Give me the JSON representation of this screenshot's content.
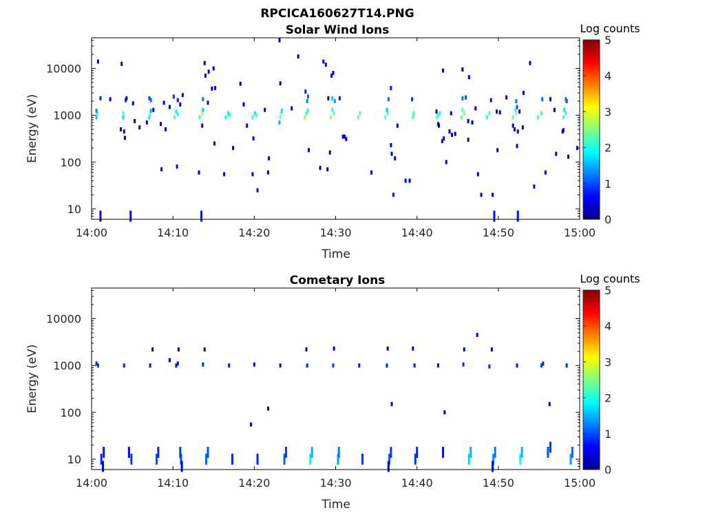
{
  "figure": {
    "title": "RPCICA160627T14.PNG"
  },
  "chart_data": [
    {
      "type": "heatmap",
      "title": "Solar Wind Ions",
      "xlabel": "Time",
      "ylabel": "Energy (eV)",
      "y_scale": "log",
      "xlim": [
        "14:00",
        "15:00"
      ],
      "ylim": [
        6,
        45000
      ],
      "x_ticks": [
        "14:00",
        "14:10",
        "14:20",
        "14:30",
        "14:40",
        "14:50",
        "15:00"
      ],
      "y_ticks": [
        "10",
        "100",
        "1000",
        "10000"
      ],
      "y_tick_values": [
        10,
        100,
        1000,
        10000
      ],
      "colorbar": {
        "label": "Log counts",
        "range": [
          0,
          5
        ],
        "ticks": [
          "0",
          "1",
          "2",
          "3",
          "4",
          "5"
        ],
        "colormap": "jet"
      },
      "points": [
        [
          0.6,
          900,
          1.6
        ],
        [
          0.7,
          1100,
          2.0
        ],
        [
          0.6,
          1250,
          1.3
        ],
        [
          1.1,
          2300,
          0.8
        ],
        [
          0.8,
          14000,
          0.4
        ],
        [
          3.9,
          900,
          1.7
        ],
        [
          3.9,
          1100,
          2.2
        ],
        [
          4.2,
          2100,
          0.8
        ],
        [
          4.3,
          2300,
          0.6
        ],
        [
          3.7,
          12500,
          0.4
        ],
        [
          4.0,
          450,
          0.5
        ],
        [
          4.1,
          330,
          0.4
        ],
        [
          3.6,
          500,
          0.4
        ],
        [
          2.3,
          2200,
          0.5
        ],
        [
          5.1,
          1800,
          0.4
        ],
        [
          5.3,
          750,
          0.4
        ],
        [
          5.9,
          550,
          0.4
        ],
        [
          7.1,
          900,
          1.8
        ],
        [
          7.2,
          1100,
          2.4
        ],
        [
          7.3,
          1250,
          1.5
        ],
        [
          7.3,
          2100,
          1.2
        ],
        [
          7.1,
          2300,
          1.0
        ],
        [
          6.8,
          700,
          0.4
        ],
        [
          7.6,
          1300,
          0.4
        ],
        [
          10.2,
          900,
          2.4
        ],
        [
          10.6,
          1050,
          2.1
        ],
        [
          10.4,
          1200,
          1.9
        ],
        [
          10.1,
          2500,
          0.9
        ],
        [
          10.6,
          2100,
          0.7
        ],
        [
          10.9,
          1700,
          0.6
        ],
        [
          11.2,
          2700,
          0.5
        ],
        [
          10.5,
          80,
          0.6
        ],
        [
          8.5,
          650,
          0.4
        ],
        [
          9.1,
          500,
          0.4
        ],
        [
          9.6,
          1500,
          0.5
        ],
        [
          8.9,
          1850,
          0.4
        ],
        [
          8.6,
          70,
          0.3
        ],
        [
          13.3,
          900,
          2.2
        ],
        [
          13.6,
          1100,
          2.7
        ],
        [
          13.7,
          1300,
          1.6
        ],
        [
          13.7,
          2200,
          1.2
        ],
        [
          14.0,
          7000,
          0.6
        ],
        [
          14.4,
          8500,
          0.6
        ],
        [
          14.8,
          3700,
          0.4
        ],
        [
          15.0,
          10000,
          0.4
        ],
        [
          14.3,
          1850,
          0.4
        ],
        [
          13.6,
          600,
          0.4
        ],
        [
          13.2,
          60,
          0.3
        ],
        [
          13.9,
          13000,
          0.4
        ],
        [
          15.2,
          3800,
          0.4
        ],
        [
          15.1,
          250,
          0.3
        ],
        [
          16.5,
          900,
          1.9
        ],
        [
          16.8,
          1100,
          1.8
        ],
        [
          17.0,
          1000,
          2.2
        ],
        [
          17.4,
          200,
          0.4
        ],
        [
          16.3,
          55,
          0.6
        ],
        [
          18.3,
          4700,
          0.4
        ],
        [
          18.7,
          1700,
          0.4
        ],
        [
          19.1,
          600,
          0.5
        ],
        [
          19.8,
          900,
          2.1
        ],
        [
          20.1,
          1100,
          1.8
        ],
        [
          20.3,
          1000,
          2.3
        ],
        [
          19.9,
          320,
          0.4
        ],
        [
          19.8,
          55,
          0.5
        ],
        [
          20.4,
          25,
          0.6
        ],
        [
          21.3,
          1300,
          0.5
        ],
        [
          21.8,
          120,
          0.4
        ],
        [
          21.7,
          60,
          0.5
        ],
        [
          23.2,
          900,
          2.4
        ],
        [
          23.3,
          1150,
          2.5
        ],
        [
          23.1,
          700,
          1.5
        ],
        [
          23.4,
          1250,
          1.8
        ],
        [
          23.2,
          4800,
          0.5
        ],
        [
          23.1,
          40000,
          0.4
        ],
        [
          24.6,
          1400,
          0.4
        ],
        [
          25.4,
          18000,
          0.4
        ],
        [
          26.2,
          900,
          2.7
        ],
        [
          26.4,
          1100,
          2.2
        ],
        [
          26.6,
          1250,
          2.0
        ],
        [
          26.5,
          2000,
          1.3
        ],
        [
          26.6,
          2500,
          1.1
        ],
        [
          26.3,
          3200,
          0.8
        ],
        [
          26.7,
          180,
          0.5
        ],
        [
          28.1,
          75,
          0.4
        ],
        [
          28.5,
          14000,
          0.6
        ],
        [
          28.8,
          12000,
          0.5
        ],
        [
          29.1,
          2300,
          0.5
        ],
        [
          29.4,
          900,
          2.6
        ],
        [
          29.8,
          1100,
          2.4
        ],
        [
          29.6,
          1300,
          2.0
        ],
        [
          29.6,
          2300,
          1.6
        ],
        [
          29.9,
          2000,
          1.4
        ],
        [
          30.5,
          2300,
          0.8
        ],
        [
          29.5,
          7000,
          0.5
        ],
        [
          29.7,
          8000,
          0.5
        ],
        [
          29.3,
          160,
          0.4
        ],
        [
          29.0,
          70,
          0.3
        ],
        [
          30.9,
          350,
          0.4
        ],
        [
          31.1,
          350,
          0.4
        ],
        [
          31.3,
          310,
          0.4
        ],
        [
          32.8,
          900,
          2.5
        ],
        [
          33.0,
          1100,
          2.2
        ],
        [
          34.4,
          60,
          0.4
        ],
        [
          36.1,
          900,
          2.3
        ],
        [
          36.4,
          1100,
          2.2
        ],
        [
          36.3,
          1300,
          1.6
        ],
        [
          36.5,
          2200,
          1.1
        ],
        [
          36.8,
          3800,
          0.6
        ],
        [
          36.8,
          230,
          0.5
        ],
        [
          36.9,
          150,
          0.4
        ],
        [
          37.3,
          120,
          0.5
        ],
        [
          37.1,
          20,
          0.6
        ],
        [
          37.6,
          600,
          0.4
        ],
        [
          38.6,
          40,
          0.5
        ],
        [
          39.1,
          40,
          0.5
        ],
        [
          39.5,
          900,
          2.3
        ],
        [
          39.6,
          1100,
          2.0
        ],
        [
          39.4,
          2200,
          0.8
        ],
        [
          42.5,
          900,
          2.2
        ],
        [
          42.8,
          1100,
          1.9
        ],
        [
          42.6,
          1000,
          2.1
        ],
        [
          42.6,
          650,
          0.5
        ],
        [
          42.7,
          600,
          0.4
        ],
        [
          42.4,
          1200,
          0.5
        ],
        [
          43.1,
          280,
          0.4
        ],
        [
          43.3,
          320,
          0.4
        ],
        [
          43.6,
          100,
          0.4
        ],
        [
          43.2,
          9000,
          0.4
        ],
        [
          44.0,
          450,
          0.4
        ],
        [
          44.3,
          380,
          0.4
        ],
        [
          44.7,
          400,
          0.4
        ],
        [
          44.2,
          1100,
          0.5
        ],
        [
          45.5,
          900,
          2.3
        ],
        [
          45.8,
          1100,
          2.5
        ],
        [
          45.6,
          1300,
          2.2
        ],
        [
          45.6,
          2300,
          1.2
        ],
        [
          46.0,
          2400,
          1.0
        ],
        [
          45.6,
          9500,
          0.4
        ],
        [
          46.4,
          6500,
          0.4
        ],
        [
          46.3,
          750,
          0.5
        ],
        [
          46.8,
          700,
          0.4
        ],
        [
          47.5,
          55,
          0.4
        ],
        [
          46.3,
          300,
          0.4
        ],
        [
          47.2,
          1400,
          0.4
        ],
        [
          47.9,
          20,
          0.6
        ],
        [
          48.6,
          900,
          2.1
        ],
        [
          48.9,
          1100,
          2.2
        ],
        [
          49.1,
          2100,
          0.7
        ],
        [
          49.3,
          20,
          0.6
        ],
        [
          49.8,
          1200,
          0.4
        ],
        [
          49.9,
          180,
          0.4
        ],
        [
          50.2,
          1150,
          0.4
        ],
        [
          51.0,
          2400,
          0.5
        ],
        [
          51.8,
          900,
          2.3
        ],
        [
          52.2,
          1100,
          2.5
        ],
        [
          52.1,
          1300,
          2.1
        ],
        [
          52.2,
          2000,
          1.2
        ],
        [
          52.3,
          1500,
          1.0
        ],
        [
          52.0,
          500,
          0.6
        ],
        [
          52.4,
          450,
          0.5
        ],
        [
          51.8,
          600,
          0.4
        ],
        [
          52.3,
          220,
          0.4
        ],
        [
          52.6,
          1200,
          0.4
        ],
        [
          53.0,
          550,
          0.4
        ],
        [
          53.1,
          3000,
          0.4
        ],
        [
          53.9,
          13000,
          0.4
        ],
        [
          54.4,
          30,
          0.6
        ],
        [
          54.9,
          900,
          2.2
        ],
        [
          55.3,
          1100,
          2.3
        ],
        [
          55.4,
          2200,
          1.2
        ],
        [
          55.8,
          60,
          0.4
        ],
        [
          56.4,
          2200,
          0.4
        ],
        [
          56.9,
          1300,
          0.4
        ],
        [
          57.1,
          150,
          0.4
        ],
        [
          58.0,
          900,
          2.2
        ],
        [
          58.3,
          1100,
          2.1
        ],
        [
          58.1,
          1300,
          1.8
        ],
        [
          58.3,
          2200,
          1.2
        ],
        [
          58.4,
          2000,
          1.0
        ],
        [
          57.9,
          450,
          0.4
        ],
        [
          58.6,
          130,
          0.4
        ],
        [
          59.7,
          200,
          0.4
        ],
        [
          58.0,
          480,
          0.4
        ]
      ],
      "bars": [
        [
          1.1,
          7,
          0.6
        ],
        [
          4.8,
          7,
          0.6
        ],
        [
          13.5,
          7,
          0.7
        ],
        [
          49.5,
          7,
          0.7
        ],
        [
          52.4,
          7,
          0.7
        ]
      ]
    },
    {
      "type": "heatmap",
      "title": "Cometary Ions",
      "xlabel": "Time",
      "ylabel": "Energy (eV)",
      "y_scale": "log",
      "xlim": [
        "14:00",
        "15:00"
      ],
      "ylim": [
        6,
        45000
      ],
      "x_ticks": [
        "14:00",
        "14:10",
        "14:20",
        "14:30",
        "14:40",
        "14:50",
        "15:00"
      ],
      "y_ticks": [
        "10",
        "100",
        "1000",
        "10000"
      ],
      "y_tick_values": [
        10,
        100,
        1000,
        10000
      ],
      "colorbar": {
        "label": "Log counts",
        "range": [
          0,
          5
        ],
        "ticks": [
          "0",
          "1",
          "2",
          "3",
          "4",
          "5"
        ],
        "colormap": "jet"
      },
      "points": [
        [
          0.8,
          1000,
          0.9
        ],
        [
          0.6,
          1100,
          0.8
        ],
        [
          4.0,
          1000,
          0.8
        ],
        [
          7.2,
          1000,
          0.7
        ],
        [
          7.5,
          2200,
          0.5
        ],
        [
          9.6,
          1300,
          0.4
        ],
        [
          10.4,
          1000,
          0.7
        ],
        [
          10.6,
          1100,
          0.7
        ],
        [
          10.7,
          2200,
          0.5
        ],
        [
          13.7,
          1050,
          0.8
        ],
        [
          13.9,
          2200,
          0.5
        ],
        [
          16.9,
          1000,
          0.7
        ],
        [
          20.0,
          1050,
          0.6
        ],
        [
          19.6,
          55,
          0.4
        ],
        [
          21.7,
          120,
          0.4
        ],
        [
          23.2,
          1000,
          0.7
        ],
        [
          26.5,
          1000,
          0.8
        ],
        [
          26.4,
          2200,
          0.5
        ],
        [
          29.7,
          1000,
          0.9
        ],
        [
          29.8,
          2300,
          0.5
        ],
        [
          32.9,
          1000,
          0.7
        ],
        [
          36.3,
          1000,
          0.8
        ],
        [
          36.4,
          2300,
          0.4
        ],
        [
          36.9,
          150,
          0.4
        ],
        [
          39.7,
          1000,
          0.8
        ],
        [
          39.5,
          2300,
          0.5
        ],
        [
          42.6,
          1000,
          0.7
        ],
        [
          43.4,
          100,
          0.4
        ],
        [
          45.7,
          1050,
          0.8
        ],
        [
          45.8,
          2200,
          0.5
        ],
        [
          47.4,
          4500,
          0.4
        ],
        [
          48.9,
          950,
          0.8
        ],
        [
          49.2,
          2200,
          0.5
        ],
        [
          52.3,
          1000,
          0.7
        ],
        [
          55.3,
          1000,
          0.9
        ],
        [
          55.5,
          1100,
          0.8
        ],
        [
          56.3,
          150,
          0.4
        ],
        [
          58.4,
          1000,
          0.8
        ]
      ],
      "bars": [
        [
          1.2,
          10,
          0.8
        ],
        [
          1.5,
          14,
          0.7
        ],
        [
          4.9,
          10,
          0.9
        ],
        [
          4.6,
          14,
          0.6
        ],
        [
          8.0,
          10,
          1.0
        ],
        [
          8.2,
          14,
          0.8
        ],
        [
          11.0,
          10,
          1.0
        ],
        [
          10.9,
          14,
          0.9
        ],
        [
          14.1,
          10,
          1.1
        ],
        [
          14.3,
          14,
          1.0
        ],
        [
          17.3,
          10,
          0.8
        ],
        [
          20.4,
          10,
          0.8
        ],
        [
          23.7,
          10,
          1.1
        ],
        [
          23.9,
          14,
          0.9
        ],
        [
          26.9,
          10,
          1.8
        ],
        [
          27.1,
          14,
          1.5
        ],
        [
          30.3,
          10,
          1.4
        ],
        [
          30.4,
          14,
          1.2
        ],
        [
          33.3,
          10,
          0.9
        ],
        [
          36.6,
          10,
          1.1
        ],
        [
          36.8,
          14,
          0.9
        ],
        [
          39.8,
          10,
          0.9
        ],
        [
          40.0,
          14,
          0.8
        ],
        [
          43.2,
          14,
          0.7
        ],
        [
          46.4,
          10,
          1.7
        ],
        [
          46.6,
          14,
          1.5
        ],
        [
          49.4,
          10,
          1.3
        ],
        [
          49.6,
          14,
          1.2
        ],
        [
          52.7,
          10,
          1.9
        ],
        [
          52.9,
          14,
          1.5
        ],
        [
          56.1,
          14,
          1.0
        ],
        [
          56.4,
          18,
          0.9
        ],
        [
          58.9,
          10,
          1.4
        ],
        [
          59.1,
          14,
          1.1
        ],
        [
          1.4,
          7,
          0.6
        ],
        [
          11.1,
          7,
          0.6
        ],
        [
          36.5,
          7,
          0.6
        ],
        [
          49.3,
          7,
          0.6
        ]
      ]
    }
  ]
}
